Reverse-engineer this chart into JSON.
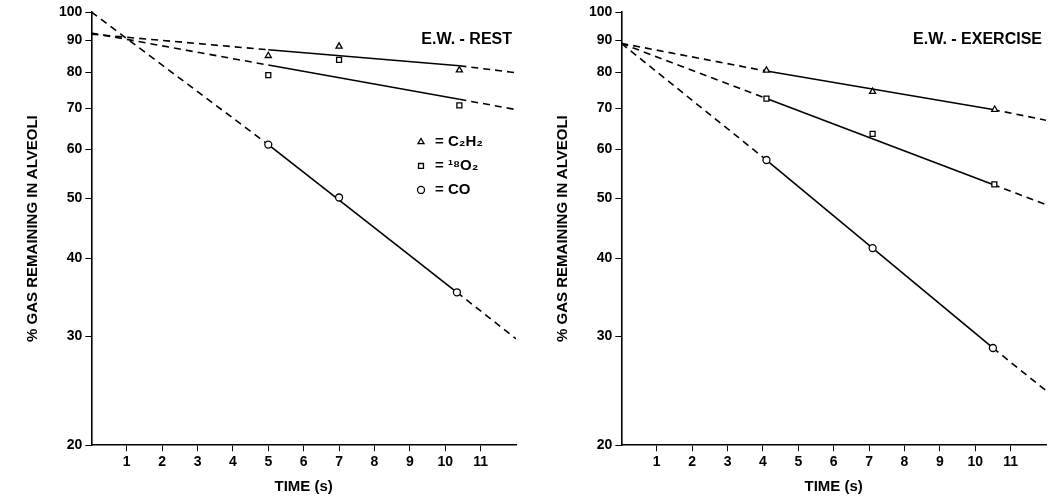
{
  "chart_data": [
    {
      "type": "line",
      "title": "E.W. - REST",
      "xlabel": "TIME (s)",
      "ylabel": "% GAS REMAINING IN ALVEOLI",
      "xlim": [
        0,
        12
      ],
      "xticks": [
        1,
        2,
        3,
        4,
        5,
        6,
        7,
        8,
        9,
        10,
        11
      ],
      "ylim": [
        20,
        100
      ],
      "yticks": [
        20,
        30,
        40,
        50,
        60,
        70,
        80,
        90,
        100
      ],
      "log": "y",
      "legend": "right",
      "series": [
        {
          "type": "line",
          "line_style": "dashed",
          "color": "#000000",
          "x": [
            0,
            5
          ],
          "values": [
            92.1,
            86.9
          ]
        },
        {
          "type": "line",
          "line_style": "solid",
          "color": "#000000",
          "x": [
            5,
            10.4
          ],
          "values": [
            86.9,
            81.9
          ]
        },
        {
          "type": "line",
          "line_style": "dashed",
          "color": "#000000",
          "x": [
            10.4,
            12
          ],
          "values": [
            81.9,
            79.8
          ]
        },
        {
          "type": "line",
          "line_style": "dashed",
          "color": "#000000",
          "x": [
            0,
            5
          ],
          "values": [
            92.5,
            82.1
          ]
        },
        {
          "type": "line",
          "line_style": "solid",
          "color": "#000000",
          "x": [
            5,
            10.4
          ],
          "values": [
            82.1,
            72.3
          ]
        },
        {
          "type": "line",
          "line_style": "dashed",
          "color": "#000000",
          "x": [
            10.4,
            12
          ],
          "values": [
            72.3,
            69.6
          ]
        },
        {
          "type": "line",
          "line_style": "dashed",
          "color": "#000000",
          "x": [
            0,
            5
          ],
          "values": [
            100,
            61.1
          ]
        },
        {
          "type": "line",
          "line_style": "solid",
          "color": "#000000",
          "x": [
            5,
            10.33
          ],
          "values": [
            61.1,
            35.3
          ]
        },
        {
          "type": "line",
          "line_style": "dashed",
          "color": "#000000",
          "x": [
            10.33,
            12
          ],
          "values": [
            35.3,
            29.7
          ]
        },
        {
          "type": "scatter",
          "name": "= C₂H₂",
          "marker": "triangle",
          "color": "#000000",
          "x": [
            5,
            7,
            10.4
          ],
          "values": [
            85.0,
            88.0,
            80.6
          ]
        },
        {
          "type": "scatter",
          "name": "= ¹⁸O₂",
          "marker": "square",
          "color": "#000000",
          "x": [
            5,
            7,
            10.4
          ],
          "values": [
            79.1,
            83.7,
            70.7
          ]
        },
        {
          "type": "scatter",
          "name": "= CO",
          "marker": "circle",
          "color": "#000000",
          "x": [
            5,
            7,
            10.33
          ],
          "values": [
            61.1,
            50.2,
            35.3
          ]
        }
      ]
    },
    {
      "type": "line",
      "title": "E.W. - EXERCISE",
      "xlabel": "TIME (s)",
      "ylabel": "% GAS REMAINING IN ALVEOLI",
      "xlim": [
        0,
        12
      ],
      "xticks": [
        1,
        2,
        3,
        4,
        5,
        6,
        7,
        8,
        9,
        10,
        11
      ],
      "ylim": [
        20,
        100
      ],
      "yticks": [
        20,
        30,
        40,
        50,
        60,
        70,
        80,
        90,
        100
      ],
      "log": "y",
      "series": [
        {
          "type": "line",
          "line_style": "dashed",
          "color": "#000000",
          "x": [
            0,
            4.1
          ],
          "values": [
            89,
            80.3
          ]
        },
        {
          "type": "line",
          "line_style": "solid",
          "color": "#000000",
          "x": [
            4.1,
            10.5
          ],
          "values": [
            80.3,
            69.6
          ]
        },
        {
          "type": "line",
          "line_style": "dashed",
          "color": "#000000",
          "x": [
            10.5,
            12
          ],
          "values": [
            69.6,
            66.9
          ]
        },
        {
          "type": "line",
          "line_style": "dashed",
          "color": "#000000",
          "x": [
            0,
            4.1
          ],
          "values": [
            89,
            72.5
          ]
        },
        {
          "type": "line",
          "line_style": "solid",
          "color": "#000000",
          "x": [
            4.1,
            10.5
          ],
          "values": [
            72.5,
            52.7
          ]
        },
        {
          "type": "line",
          "line_style": "dashed",
          "color": "#000000",
          "x": [
            10.5,
            12
          ],
          "values": [
            52.7,
            48.9
          ]
        },
        {
          "type": "line",
          "line_style": "dashed",
          "color": "#000000",
          "x": [
            0,
            4.1
          ],
          "values": [
            89,
            57.7
          ]
        },
        {
          "type": "line",
          "line_style": "solid",
          "color": "#000000",
          "x": [
            4.1,
            10.5
          ],
          "values": [
            57.7,
            28.7
          ]
        },
        {
          "type": "line",
          "line_style": "dashed",
          "color": "#000000",
          "x": [
            10.5,
            12
          ],
          "values": [
            28.7,
            24.5
          ]
        },
        {
          "type": "scatter",
          "marker": "triangle",
          "color": "#000000",
          "x": [
            4.1,
            7.1,
            10.55
          ],
          "values": [
            80.5,
            74.4,
            69.6
          ]
        },
        {
          "type": "scatter",
          "marker": "square",
          "color": "#000000",
          "x": [
            4.1,
            7.1,
            10.54
          ],
          "values": [
            72.5,
            63.6,
            52.7
          ]
        },
        {
          "type": "scatter",
          "marker": "circle",
          "color": "#000000",
          "x": [
            4.1,
            7.1,
            10.5
          ],
          "values": [
            57.7,
            41.6,
            28.7
          ]
        }
      ]
    }
  ]
}
